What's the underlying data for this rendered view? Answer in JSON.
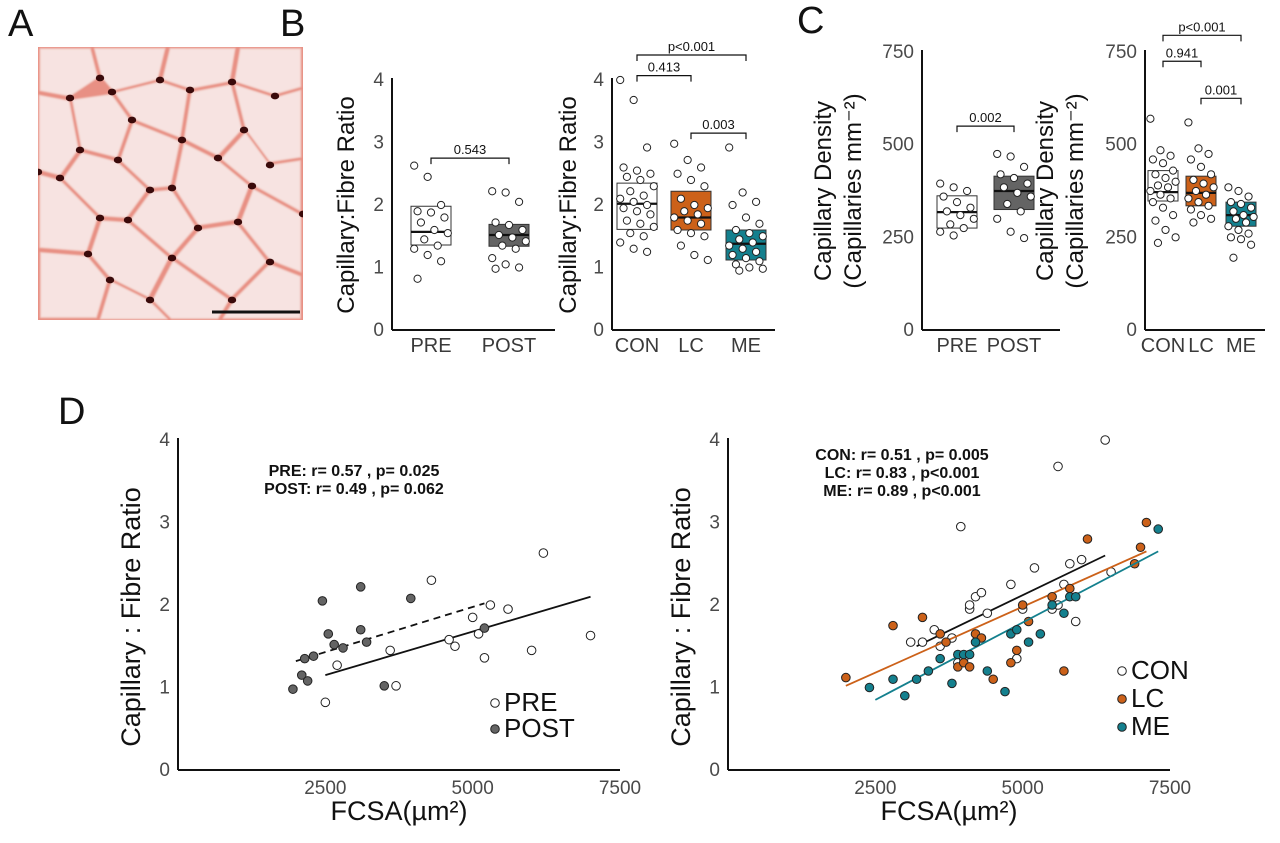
{
  "colors": {
    "pre": "#ffffff",
    "post": "#646464",
    "con": "#ffffff",
    "lc": "#cc6119",
    "me": "#14808e",
    "axis": "#111111",
    "histo_bg": "#f7e3e1",
    "histo_membrane": "#e89084",
    "histo_capillary": "#3a0a0a"
  },
  "panels": {
    "A": "A",
    "B": "B",
    "C": "C",
    "D": "D"
  },
  "chart_data": [
    {
      "panel": "B-left",
      "type": "box",
      "ylabel": "Capillary:Fibre Ratio",
      "ylim": [
        0,
        4
      ],
      "yticks": [
        0,
        1,
        2,
        3,
        4
      ],
      "categories": [
        "PRE",
        "POST"
      ],
      "boxes": [
        {
          "q1": 1.36,
          "median": 1.57,
          "q3": 1.98
        },
        {
          "q1": 1.34,
          "median": 1.52,
          "q3": 1.69
        }
      ],
      "points": [
        [
          2.63,
          2.45,
          2.0,
          1.9,
          1.88,
          1.8,
          1.72,
          1.6,
          1.55,
          1.45,
          1.35,
          1.3,
          1.2,
          1.1,
          0.82
        ],
        [
          2.22,
          2.2,
          2.05,
          1.72,
          1.68,
          1.6,
          1.52,
          1.48,
          1.42,
          1.35,
          1.3,
          1.15,
          1.05,
          1.0,
          0.98
        ]
      ],
      "comparisons": [
        {
          "from": 0,
          "to": 1,
          "label": "0.543",
          "y": 2.75
        }
      ]
    },
    {
      "panel": "B-right",
      "type": "box",
      "ylabel": "Capillary:Fibre Ratio",
      "ylim": [
        0,
        4
      ],
      "yticks": [
        0,
        1,
        2,
        3,
        4
      ],
      "categories": [
        "CON",
        "LC",
        "ME"
      ],
      "boxes": [
        {
          "q1": 1.61,
          "median": 2.02,
          "q3": 2.35
        },
        {
          "q1": 1.6,
          "median": 1.8,
          "q3": 2.22
        },
        {
          "q1": 1.12,
          "median": 1.38,
          "q3": 1.6
        }
      ],
      "points": [
        [
          4.0,
          3.68,
          2.92,
          2.6,
          2.55,
          2.5,
          2.45,
          2.4,
          2.3,
          2.22,
          2.15,
          2.1,
          2.05,
          2.0,
          1.95,
          1.9,
          1.85,
          1.75,
          1.7,
          1.65,
          1.55,
          1.5,
          1.4,
          1.3,
          1.25
        ],
        [
          2.98,
          2.72,
          2.6,
          2.5,
          2.4,
          2.3,
          2.1,
          2.0,
          1.95,
          1.9,
          1.85,
          1.8,
          1.75,
          1.7,
          1.6,
          1.55,
          1.5,
          1.35,
          1.2,
          1.12
        ],
        [
          2.92,
          2.2,
          2.05,
          2.0,
          1.8,
          1.7,
          1.6,
          1.55,
          1.5,
          1.45,
          1.4,
          1.35,
          1.3,
          1.25,
          1.2,
          1.15,
          1.1,
          1.05,
          1.0,
          0.98,
          0.95
        ]
      ],
      "comparisons": [
        {
          "from": 0,
          "to": 2,
          "label": "p<0.001",
          "y": 4.4
        },
        {
          "from": 0,
          "to": 1,
          "label": "0.413",
          "y": 4.07
        },
        {
          "from": 1,
          "to": 2,
          "label": "0.003",
          "y": 3.15
        }
      ]
    },
    {
      "panel": "C-left",
      "type": "box",
      "ylabel": [
        "Capillary Density",
        "(Capillaries mm⁻²)"
      ],
      "ylim": [
        0,
        750
      ],
      "yticks": [
        0,
        250,
        500,
        750
      ],
      "categories": [
        "PRE",
        "POST"
      ],
      "boxes": [
        {
          "q1": 275,
          "median": 318,
          "q3": 362
        },
        {
          "q1": 325,
          "median": 375,
          "q3": 415
        }
      ],
      "points": [
        [
          395,
          385,
          375,
          360,
          345,
          330,
          320,
          310,
          300,
          285,
          275,
          265,
          255
        ],
        [
          475,
          468,
          440,
          420,
          410,
          395,
          385,
          370,
          360,
          340,
          320,
          300,
          265,
          248
        ]
      ],
      "comparisons": [
        {
          "from": 0,
          "to": 1,
          "label": "0.002",
          "y": 550
        }
      ]
    },
    {
      "panel": "C-right",
      "type": "box",
      "ylabel": [
        "Capillary Density",
        "(Capillaries mm⁻²)"
      ],
      "ylim": [
        0,
        750
      ],
      "yticks": [
        0,
        250,
        500,
        750
      ],
      "categories": [
        "CON",
        "LC",
        "ME"
      ],
      "boxes": [
        {
          "q1": 348,
          "median": 372,
          "q3": 430
        },
        {
          "q1": 335,
          "median": 370,
          "q3": 415
        },
        {
          "q1": 280,
          "median": 310,
          "q3": 345
        }
      ],
      "points": [
        [
          570,
          485,
          470,
          460,
          450,
          430,
          420,
          410,
          400,
          390,
          385,
          375,
          365,
          355,
          345,
          330,
          310,
          295,
          270,
          250,
          235
        ],
        [
          560,
          490,
          475,
          460,
          440,
          420,
          405,
          395,
          385,
          375,
          365,
          355,
          345,
          335,
          325,
          310,
          300,
          290
        ],
        [
          385,
          375,
          360,
          345,
          340,
          330,
          320,
          310,
          305,
          300,
          290,
          280,
          270,
          260,
          250,
          245,
          230,
          195
        ]
      ],
      "comparisons": [
        {
          "from": 0,
          "to": 2,
          "label": "p<0.001",
          "y": 795
        },
        {
          "from": 0,
          "to": 1,
          "label": "0.941",
          "y": 725
        },
        {
          "from": 1,
          "to": 2,
          "label": "0.001",
          "y": 625
        }
      ]
    },
    {
      "panel": "D-left",
      "type": "scatter",
      "xlabel": "FCSA(µm²)",
      "ylabel": "Capillary : Fibre Ratio",
      "xlim": [
        0,
        7500
      ],
      "ylim": [
        0,
        4
      ],
      "xticks": [
        2500,
        5000,
        7500
      ],
      "yticks": [
        0,
        1,
        2,
        3,
        4
      ],
      "stats": [
        "PRE: r= 0.57 , p= 0.025",
        "POST: r= 0.49 , p= 0.062"
      ],
      "series": [
        {
          "name": "PRE",
          "color_key": "pre",
          "line": "solid",
          "fit": [
            [
              2500,
              1.15
            ],
            [
              7000,
              2.1
            ]
          ],
          "x": [
            2500,
            2700,
            3600,
            4300,
            4600,
            4700,
            5000,
            5100,
            5200,
            5300,
            5600,
            6000,
            6200,
            7000,
            3700
          ],
          "y": [
            0.82,
            1.27,
            1.45,
            2.3,
            1.58,
            1.5,
            1.85,
            1.65,
            1.36,
            2.0,
            1.95,
            1.45,
            2.63,
            1.63,
            1.02
          ]
        },
        {
          "name": "POST",
          "color_key": "post",
          "line": "dashed",
          "fit": [
            [
              2000,
              1.32
            ],
            [
              5200,
              2.02
            ]
          ],
          "x": [
            1950,
            2100,
            2150,
            2200,
            2300,
            2450,
            2550,
            2650,
            2800,
            3100,
            3100,
            3200,
            3500,
            3950,
            5200
          ],
          "y": [
            0.98,
            1.15,
            1.35,
            1.08,
            1.38,
            2.05,
            1.65,
            1.52,
            1.48,
            2.22,
            1.7,
            1.55,
            1.02,
            2.08,
            1.72
          ]
        }
      ],
      "legend": [
        "PRE",
        "POST"
      ]
    },
    {
      "panel": "D-right",
      "type": "scatter",
      "xlabel": "FCSA(µm²)",
      "ylabel": "Capillary : Fibre Ratio",
      "xlim": [
        0,
        7500
      ],
      "ylim": [
        0,
        4
      ],
      "xticks": [
        2500,
        5000,
        7500
      ],
      "yticks": [
        0,
        1,
        2,
        3,
        4
      ],
      "stats": [
        "CON: r= 0.51 , p= 0.005",
        "LC: r= 0.83 , p<0.001",
        "ME: r= 0.89 , p<0.001"
      ],
      "series": [
        {
          "name": "CON",
          "color_key": "con",
          "line": "solid",
          "fit": [
            [
              3200,
              1.5
            ],
            [
              6400,
              2.6
            ]
          ],
          "x": [
            3100,
            3300,
            3500,
            3600,
            3800,
            3900,
            4000,
            4100,
            4100,
            4200,
            4300,
            4400,
            4800,
            4900,
            5000,
            5200,
            5500,
            5600,
            5600,
            5700,
            5800,
            5900,
            6000,
            6400,
            6500,
            3950
          ],
          "y": [
            1.55,
            1.55,
            1.7,
            1.5,
            1.6,
            1.3,
            1.35,
            1.95,
            2.0,
            2.1,
            2.15,
            1.9,
            2.25,
            1.35,
            1.95,
            2.45,
            1.95,
            2.0,
            3.68,
            2.25,
            2.5,
            1.8,
            2.55,
            4.0,
            2.4,
            2.95
          ]
        },
        {
          "name": "LC",
          "color_key": "lc",
          "line": "solid",
          "fit": [
            [
              2000,
              1.02
            ],
            [
              7100,
              2.65
            ]
          ],
          "x": [
            2000,
            2800,
            3300,
            3600,
            3700,
            3900,
            4000,
            4100,
            4200,
            4300,
            4500,
            4800,
            4900,
            5000,
            5100,
            5500,
            5700,
            5800,
            6100,
            6900,
            7000,
            7100
          ],
          "y": [
            1.12,
            1.75,
            1.85,
            1.65,
            1.55,
            1.25,
            1.3,
            1.25,
            1.65,
            1.6,
            1.1,
            1.3,
            1.45,
            2.0,
            1.8,
            2.1,
            1.2,
            2.2,
            2.8,
            2.5,
            2.7,
            3.0
          ]
        },
        {
          "name": "ME",
          "color_key": "me",
          "line": "solid",
          "fit": [
            [
              2500,
              0.85
            ],
            [
              7300,
              2.65
            ]
          ],
          "x": [
            2400,
            2800,
            3000,
            3200,
            3400,
            3600,
            3800,
            3900,
            4000,
            4100,
            4200,
            4400,
            4700,
            4800,
            4900,
            5100,
            5300,
            5500,
            5700,
            5800,
            5900,
            7300
          ],
          "y": [
            1.0,
            1.1,
            0.9,
            1.1,
            1.2,
            1.35,
            1.05,
            1.4,
            1.4,
            1.4,
            1.55,
            1.2,
            0.95,
            1.65,
            1.7,
            1.55,
            1.65,
            2.0,
            1.9,
            2.1,
            2.1,
            2.92
          ]
        }
      ],
      "legend": [
        "CON",
        "LC",
        "ME"
      ]
    }
  ]
}
